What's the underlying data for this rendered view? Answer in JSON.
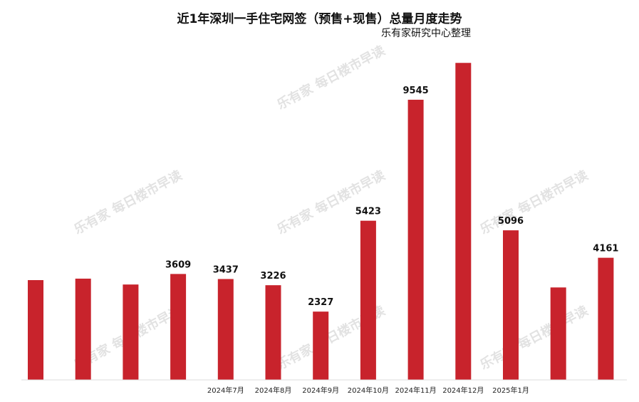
{
  "chart_data": {
    "type": "bar",
    "title": "近1年深圳一手住宅网签（预售+现售）总量月度走势",
    "source": "乐有家研究中心整理",
    "categories": [
      "",
      "",
      "",
      "",
      "2024年7月",
      "2024年8月",
      "2024年9月",
      "2024年10月",
      "2024年11月",
      "2024年12月",
      "2025年1月",
      "",
      ""
    ],
    "values": [
      3400,
      3450,
      3250,
      3609,
      3437,
      3226,
      2327,
      5423,
      9545,
      10800,
      5096,
      3150,
      4161
    ],
    "data_labels": [
      "",
      "",
      "",
      "3609",
      "3437",
      "3226",
      "2327",
      "5423",
      "9545",
      "",
      "5096",
      "",
      "4161"
    ],
    "ylim": [
      0,
      11000
    ],
    "colors": {
      "bar": "#c8232c"
    }
  },
  "watermark": "乐有家 每日楼市早读"
}
